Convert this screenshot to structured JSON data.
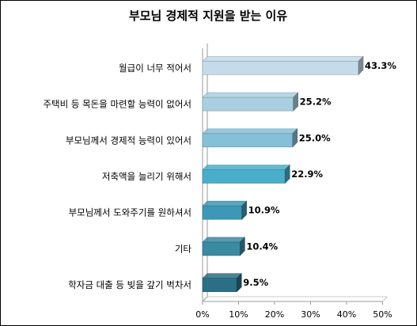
{
  "chart_data": {
    "type": "bar",
    "orientation": "horizontal",
    "title": "부모님 경제적 지원을 받는 이유",
    "categories": [
      "월급이 너무 적어서",
      "주택비 등 목돈을 마련할 능력이 없어서",
      "부모님께서 경제적 능력이 있어서",
      "저축액을 늘리기 위해서",
      "부모님께서 도와주기를 원하셔서",
      "기타",
      "학자금 대출 등 빚을 갚기 벅차서"
    ],
    "values": [
      43.3,
      25.2,
      25.0,
      22.9,
      10.9,
      10.4,
      9.5
    ],
    "value_labels": [
      "43.3%",
      "25.2%",
      "25.0%",
      "22.9%",
      "10.9%",
      "10.4%",
      "9.5%"
    ],
    "xlim": [
      0,
      50
    ],
    "xticks": [
      "0%",
      "10%",
      "20%",
      "30%",
      "40%",
      "50%"
    ],
    "grid": false,
    "bar_colors": [
      "#c6dbea",
      "#a9cfe0",
      "#86c0d8",
      "#4aaecb",
      "#3c98b6",
      "#3a8aa4",
      "#2b6f87"
    ]
  }
}
